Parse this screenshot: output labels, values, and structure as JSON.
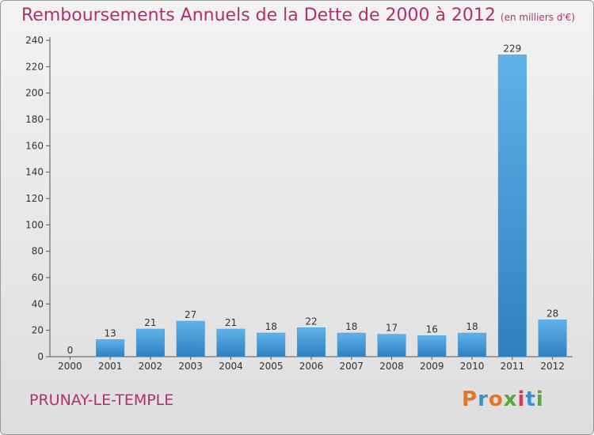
{
  "header": {
    "title": "Remboursements Annuels de la Dette de 2000 à 2012",
    "unit": "(en milliers d'€)"
  },
  "footer": {
    "commune": "PRUNAY-LE-TEMPLE",
    "logo_text": "Proxiti"
  },
  "colors": {
    "title": "#b0306f",
    "bar_light": "#5aaee6",
    "bar_dark": "#2f7fbf",
    "logo": [
      "#e8732a",
      "#3f8fd4",
      "#e8732a",
      "#57a83a",
      "#d63a5c",
      "#3f8fd4",
      "#57a83a"
    ]
  },
  "chart_data": {
    "type": "bar",
    "title": "Remboursements Annuels de la Dette de 2000 à 2012",
    "xlabel": "",
    "ylabel": "",
    "categories": [
      "2000",
      "2001",
      "2002",
      "2003",
      "2004",
      "2005",
      "2006",
      "2007",
      "2008",
      "2009",
      "2010",
      "2011",
      "2012"
    ],
    "values": [
      0,
      13,
      21,
      27,
      21,
      18,
      22,
      18,
      17,
      16,
      18,
      229,
      28
    ],
    "ylim": [
      0,
      240
    ],
    "yticks": [
      0,
      20,
      40,
      60,
      80,
      100,
      120,
      140,
      160,
      180,
      200,
      220,
      240
    ],
    "grid": false,
    "legend": "none"
  }
}
